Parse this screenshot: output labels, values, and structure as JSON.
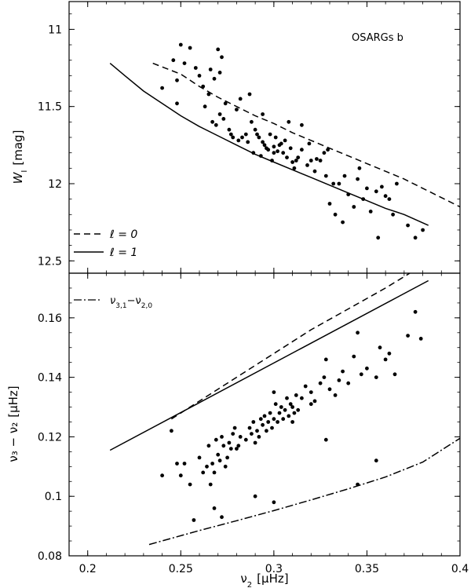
{
  "chart_data": [
    {
      "type": "scatter",
      "panel": "top",
      "annotation": "OSARGs b",
      "ylabel_main": "W",
      "ylabel_sub": "I",
      "ylabel_unit": "[mag]",
      "xlim": [
        0.19,
        0.4
      ],
      "ylim": [
        12.58,
        10.82
      ],
      "y_inverted": true,
      "yticks": [
        11,
        11.5,
        12,
        12.5
      ],
      "ytick_labels": [
        "11",
        "11.5",
        "12",
        "12.5"
      ],
      "legend_position": "bottom-left",
      "series": [
        {
          "name": "ℓ = 0",
          "style": "dashed",
          "x": [
            0.235,
            0.25,
            0.26,
            0.27,
            0.28,
            0.29,
            0.3,
            0.31,
            0.32,
            0.33,
            0.34,
            0.35,
            0.36,
            0.37,
            0.38,
            0.39,
            0.4
          ],
          "y": [
            11.22,
            11.29,
            11.37,
            11.44,
            11.5,
            11.56,
            11.61,
            11.67,
            11.72,
            11.77,
            11.82,
            11.87,
            11.92,
            11.97,
            12.03,
            12.09,
            12.15
          ]
        },
        {
          "name": "ℓ = 1",
          "style": "solid",
          "x": [
            0.212,
            0.22,
            0.23,
            0.24,
            0.25,
            0.26,
            0.27,
            0.28,
            0.29,
            0.3,
            0.31,
            0.32,
            0.33,
            0.34,
            0.35,
            0.36,
            0.37,
            0.383
          ],
          "y": [
            11.22,
            11.3,
            11.4,
            11.48,
            11.56,
            11.63,
            11.69,
            11.75,
            11.81,
            11.86,
            11.91,
            11.96,
            12.01,
            12.06,
            12.11,
            12.16,
            12.2,
            12.27
          ]
        }
      ],
      "points": {
        "x": [
          0.24,
          0.246,
          0.248,
          0.25,
          0.252,
          0.255,
          0.248,
          0.26,
          0.262,
          0.265,
          0.268,
          0.27,
          0.272,
          0.258,
          0.263,
          0.267,
          0.271,
          0.274,
          0.276,
          0.278,
          0.28,
          0.282,
          0.269,
          0.273,
          0.277,
          0.283,
          0.286,
          0.289,
          0.291,
          0.293,
          0.295,
          0.297,
          0.299,
          0.301,
          0.303,
          0.305,
          0.307,
          0.309,
          0.311,
          0.313,
          0.315,
          0.318,
          0.32,
          0.288,
          0.29,
          0.292,
          0.294,
          0.298,
          0.3,
          0.302,
          0.304,
          0.306,
          0.31,
          0.322,
          0.325,
          0.327,
          0.329,
          0.33,
          0.333,
          0.335,
          0.338,
          0.34,
          0.343,
          0.345,
          0.348,
          0.35,
          0.352,
          0.355,
          0.358,
          0.36,
          0.362,
          0.364,
          0.366,
          0.372,
          0.376,
          0.38,
          0.315,
          0.319,
          0.323,
          0.328,
          0.332,
          0.337,
          0.346,
          0.356,
          0.281,
          0.285,
          0.296,
          0.3,
          0.312,
          0.266,
          0.271,
          0.287,
          0.294,
          0.308
        ],
        "y": [
          11.38,
          11.2,
          11.48,
          11.1,
          11.22,
          11.12,
          11.33,
          11.3,
          11.37,
          11.42,
          11.32,
          11.13,
          11.18,
          11.25,
          11.5,
          11.6,
          11.55,
          11.48,
          11.65,
          11.7,
          11.52,
          11.45,
          11.62,
          11.58,
          11.68,
          11.7,
          11.73,
          11.8,
          11.68,
          11.82,
          11.75,
          11.78,
          11.85,
          11.7,
          11.75,
          11.8,
          11.83,
          11.77,
          11.9,
          11.83,
          11.78,
          11.88,
          11.85,
          11.6,
          11.65,
          11.7,
          11.73,
          11.68,
          11.76,
          11.79,
          11.74,
          11.72,
          11.86,
          11.92,
          11.85,
          11.8,
          11.78,
          12.13,
          12.2,
          12.0,
          11.95,
          12.07,
          12.15,
          11.97,
          12.1,
          12.03,
          12.18,
          12.05,
          12.02,
          12.08,
          12.1,
          12.2,
          12.0,
          12.27,
          12.35,
          12.3,
          11.62,
          11.74,
          11.84,
          11.95,
          12.0,
          12.25,
          11.9,
          12.35,
          11.72,
          11.68,
          11.77,
          11.8,
          11.85,
          11.26,
          11.28,
          11.42,
          11.55,
          11.6
        ]
      }
    },
    {
      "type": "scatter",
      "panel": "bottom",
      "xlabel_main": "ν",
      "xlabel_sub": "2",
      "xlabel_unit": "[μHz]",
      "ylabel_text": "ν₃ − ν₂",
      "ylabel_unit": "[μHz]",
      "xlim": [
        0.19,
        0.4
      ],
      "ylim": [
        0.08,
        0.175
      ],
      "xticks": [
        0.2,
        0.25,
        0.3,
        0.35,
        0.4
      ],
      "xtick_labels": [
        "0.2",
        "0.25",
        "0.3",
        "0.35",
        "0.4"
      ],
      "yticks": [
        0.08,
        0.1,
        0.12,
        0.14,
        0.16
      ],
      "ytick_labels": [
        "0.08",
        "0.1",
        "0.12",
        "0.14",
        "0.16"
      ],
      "legend_position": "top-left",
      "legend_label_base1": "ν",
      "legend_label_sub1": "3,1",
      "legend_label_mid": "−ν",
      "legend_label_sub2": "2,0",
      "series": [
        {
          "name": "ℓ = 0",
          "style": "dashed",
          "x": [
            0.245,
            0.26,
            0.28,
            0.3,
            0.32,
            0.34,
            0.36,
            0.373
          ],
          "y": [
            0.126,
            0.132,
            0.14,
            0.148,
            0.156,
            0.163,
            0.17,
            0.175
          ]
        },
        {
          "name": "ℓ = 1",
          "style": "solid",
          "x": [
            0.212,
            0.383
          ],
          "y": [
            0.1155,
            0.1725
          ]
        },
        {
          "name": "ν3,1−ν2,0",
          "style": "dashdot",
          "x": [
            0.233,
            0.26,
            0.28,
            0.3,
            0.32,
            0.34,
            0.36,
            0.38,
            0.4
          ],
          "y": [
            0.0838,
            0.0885,
            0.0918,
            0.0952,
            0.0988,
            0.1025,
            0.1065,
            0.1115,
            0.1195
          ]
        }
      ],
      "points": {
        "x": [
          0.24,
          0.245,
          0.248,
          0.25,
          0.252,
          0.255,
          0.257,
          0.26,
          0.262,
          0.264,
          0.265,
          0.266,
          0.267,
          0.268,
          0.269,
          0.27,
          0.271,
          0.272,
          0.273,
          0.274,
          0.275,
          0.276,
          0.277,
          0.278,
          0.279,
          0.28,
          0.282,
          0.285,
          0.287,
          0.288,
          0.289,
          0.29,
          0.291,
          0.292,
          0.293,
          0.294,
          0.295,
          0.296,
          0.297,
          0.298,
          0.299,
          0.3,
          0.301,
          0.302,
          0.303,
          0.304,
          0.305,
          0.306,
          0.307,
          0.308,
          0.309,
          0.31,
          0.311,
          0.312,
          0.313,
          0.315,
          0.317,
          0.32,
          0.322,
          0.325,
          0.327,
          0.328,
          0.33,
          0.333,
          0.335,
          0.337,
          0.34,
          0.343,
          0.345,
          0.347,
          0.35,
          0.355,
          0.357,
          0.36,
          0.362,
          0.365,
          0.372,
          0.376,
          0.379,
          0.268,
          0.272,
          0.281,
          0.29,
          0.3,
          0.31,
          0.32,
          0.328,
          0.345,
          0.355,
          0.3
        ],
        "y": [
          0.107,
          0.122,
          0.111,
          0.107,
          0.111,
          0.104,
          0.092,
          0.113,
          0.108,
          0.11,
          0.117,
          0.104,
          0.111,
          0.108,
          0.119,
          0.114,
          0.112,
          0.12,
          0.117,
          0.11,
          0.113,
          0.118,
          0.116,
          0.121,
          0.123,
          0.116,
          0.12,
          0.119,
          0.123,
          0.121,
          0.125,
          0.118,
          0.122,
          0.12,
          0.126,
          0.124,
          0.127,
          0.122,
          0.125,
          0.128,
          0.123,
          0.126,
          0.131,
          0.125,
          0.128,
          0.13,
          0.126,
          0.129,
          0.133,
          0.127,
          0.131,
          0.13,
          0.128,
          0.134,
          0.129,
          0.133,
          0.137,
          0.135,
          0.132,
          0.138,
          0.14,
          0.146,
          0.136,
          0.134,
          0.139,
          0.142,
          0.138,
          0.147,
          0.155,
          0.141,
          0.143,
          0.14,
          0.15,
          0.146,
          0.148,
          0.141,
          0.154,
          0.162,
          0.153,
          0.096,
          0.093,
          0.117,
          0.1,
          0.098,
          0.125,
          0.131,
          0.119,
          0.104,
          0.112,
          0.135
        ]
      }
    }
  ]
}
